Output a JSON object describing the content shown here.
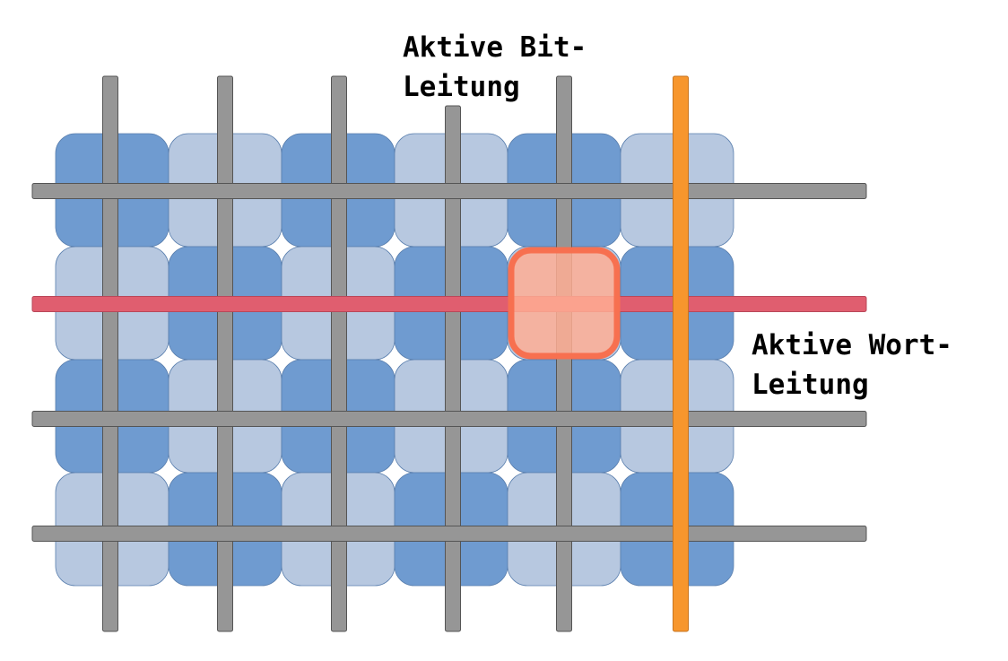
{
  "diagram": {
    "bit_line_label": [
      "Aktive Bit-",
      "Leitung"
    ],
    "word_line_label": [
      "Aktive Wort-",
      "Leitung"
    ]
  },
  "grid": {
    "rows": 4,
    "cols": 6,
    "bit_lines": 6,
    "word_lines": 4,
    "active_row": 2,
    "active_col": 5,
    "active_bit_line": 5,
    "active_word_line": 2
  },
  "colors": {
    "cell_dark": "#6F9BD0",
    "cell_light": "#B7C8E0",
    "cell_border": "#5A7FAE",
    "line_gray": "#969696",
    "line_gray_border": "#555555",
    "active_bit_line": "#F7962D",
    "active_word_line": "#E05E6F",
    "active_cell_fill": "#FFAE94",
    "active_cell_border": "#F77050"
  }
}
